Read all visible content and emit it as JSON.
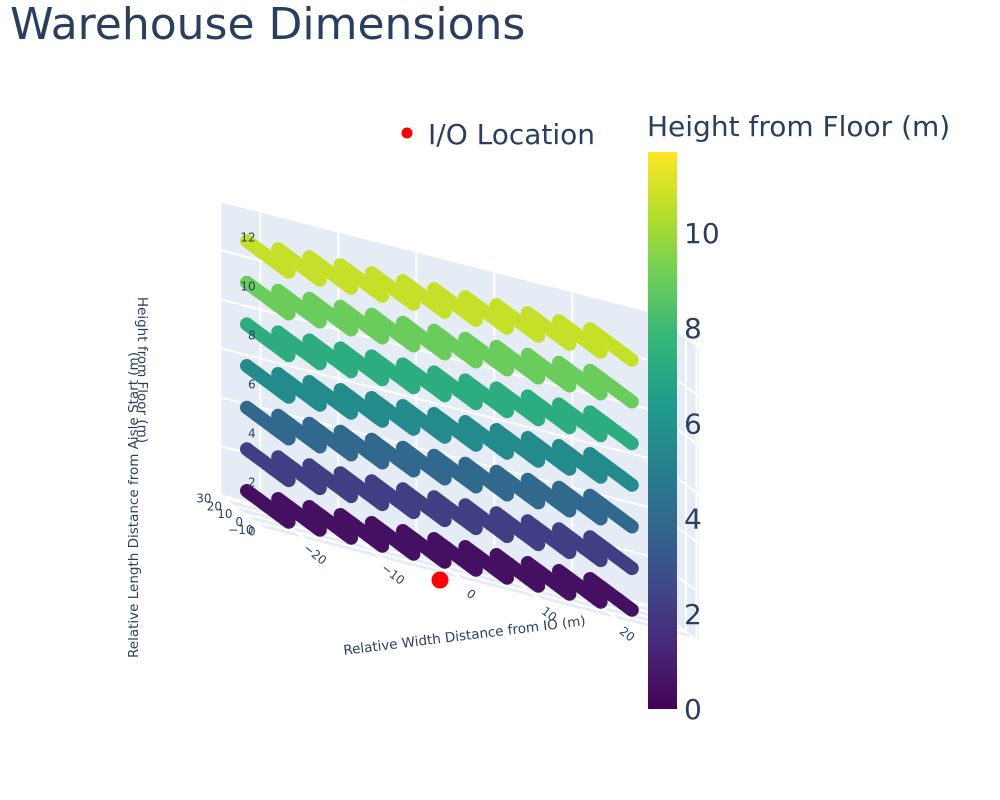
{
  "chart_data": {
    "type": "scatter3d",
    "title": "Warehouse Dimensions",
    "axes": {
      "x": {
        "label": "Relative Width Distance from IO (m)",
        "range": [
          -25,
          30
        ],
        "ticks": [
          20,
          10,
          0,
          -10,
          -20
        ]
      },
      "y": {
        "label": "Relative Length Distance from Aisle Start (m)",
        "range": [
          -12,
          34
        ],
        "ticks": [
          -10,
          0,
          10,
          20,
          30
        ]
      },
      "z": {
        "label": "Height from Floor (m)",
        "range": [
          0,
          12
        ],
        "ticks": [
          0,
          2,
          4,
          6,
          8,
          10,
          12
        ]
      }
    },
    "series": [
      {
        "name": "",
        "marker_color_by": "z",
        "levels_z": [
          0.5,
          2.2,
          3.9,
          5.6,
          7.3,
          9.0,
          10.7
        ],
        "aisles_x": [
          22,
          18,
          14,
          10,
          6,
          2,
          -2,
          -6,
          -10,
          -14,
          -18,
          -22
        ],
        "y_range": [
          -8,
          32
        ],
        "y_step": 2
      },
      {
        "name": "I/O Location",
        "x": [
          0
        ],
        "y": [
          0
        ],
        "z": [
          0
        ],
        "color": "#ff0000"
      }
    ],
    "colorbar": {
      "title": "Height from Floor (m)",
      "ticks": [
        0,
        2,
        4,
        6,
        8,
        10
      ],
      "range": [
        0,
        11.7
      ],
      "colorscale": "Viridis"
    },
    "legend_position": "top-right",
    "grid": true
  }
}
